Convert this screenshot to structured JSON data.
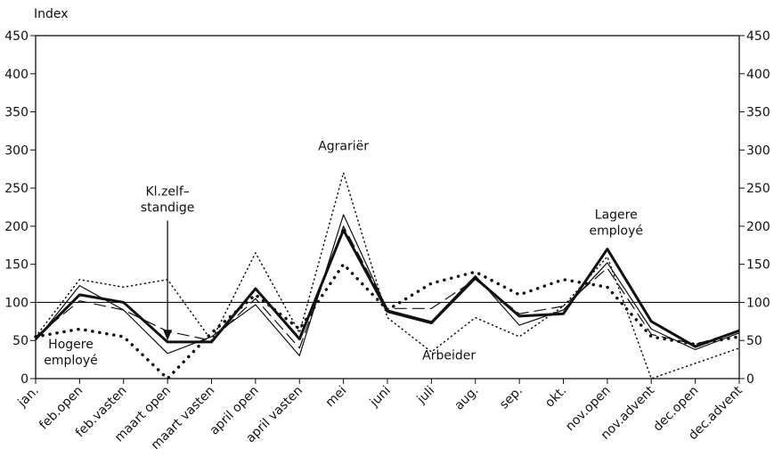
{
  "chart_data": {
    "type": "line",
    "y_label": "Index",
    "categories": [
      "jan.",
      "feb.open",
      "feb.vasten",
      "maart open",
      "maart vasten",
      "april open",
      "april vasten",
      "mei",
      "juni",
      "juli",
      "aug.",
      "sep.",
      "okt.",
      "nov.open",
      "nov.advent",
      "dec.open",
      "dec.advent"
    ],
    "series": [
      {
        "color": "#111111",
        "style": "fine-dotted",
        "values": [
          55,
          130,
          120,
          130,
          50,
          165,
          60,
          270,
          80,
          35,
          80,
          55,
          95,
          160,
          0,
          20,
          40
        ]
      },
      {
        "color": "#111111",
        "style": "bold-dotted",
        "values": [
          55,
          65,
          55,
          0,
          60,
          110,
          65,
          150,
          90,
          125,
          140,
          110,
          130,
          120,
          55,
          45,
          55
        ]
      },
      {
        "color": "#111111",
        "style": "thick",
        "values": [
          52,
          110,
          100,
          48,
          48,
          118,
          52,
          195,
          88,
          73,
          132,
          82,
          85,
          170,
          75,
          42,
          63
        ]
      },
      {
        "color": "#111111",
        "style": "thin",
        "values": [
          50,
          122,
          90,
          33,
          55,
          97,
          30,
          215,
          90,
          75,
          135,
          70,
          90,
          152,
          65,
          38,
          60
        ]
      },
      {
        "color": "#111111",
        "style": "dashed",
        "values": [
          55,
          102,
          90,
          62,
          50,
          105,
          40,
          200,
          92,
          92,
          130,
          85,
          95,
          145,
          58,
          45,
          62
        ]
      }
    ],
    "reference_line": 100,
    "annotations": [
      {
        "lines": [
          "Agrariër"
        ],
        "x": 7,
        "y": 300
      },
      {
        "lines": [
          "Kl.zelf–",
          "standige"
        ],
        "x": 3,
        "y": 240,
        "arrow_to": 50
      },
      {
        "lines": [
          "Lagere",
          "employé"
        ],
        "x": 13.2,
        "y": 210
      },
      {
        "lines": [
          "Hogere",
          "employé"
        ],
        "x": 0.8,
        "y": 40
      },
      {
        "lines": [
          "Arbeider"
        ],
        "x": 9.4,
        "y": 25
      }
    ],
    "ylim": [
      0,
      450
    ],
    "yticks": [
      0,
      50,
      100,
      150,
      200,
      250,
      300,
      350,
      400,
      450
    ]
  }
}
